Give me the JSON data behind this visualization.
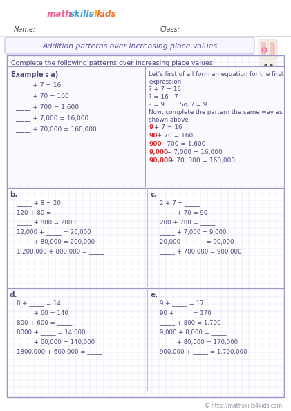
{
  "bg_color": "#ffffff",
  "grid_color": "#d8d0f0",
  "border_color": "#9898c8",
  "title_text": "Addition patterns over increasing place values",
  "title_color": "#5a5a9a",
  "logo_math": "math",
  "logo_skills": "skills",
  "logo_4": "4",
  "logo_kids": "kids",
  "logo_math_color": "#f06090",
  "logo_skills_color": "#40a0e0",
  "logo_4_color": "#f0b830",
  "logo_kids_color": "#f07030",
  "example_label": "Example : a)",
  "example_left": [
    "_____ + 7 = 16",
    "_____ + 70 = 160",
    "_____ + 700 = 1,600",
    "_____ + 7,000 = 16,000",
    "_____ + 70,000 = 160,000"
  ],
  "example_right_black": [
    "Let’s first of all form an equation for the first",
    "expression",
    "? + 7 = 16",
    "? = 16 - 7",
    "? = 9        So, ? = 9",
    "Now, complete the partern the same way as",
    "shown above"
  ],
  "example_right_red_lines": [
    [
      "9",
      " + 7 = 16"
    ],
    [
      "90",
      " + 70 = 160"
    ],
    [
      "900",
      " + 700 = 1,600"
    ],
    [
      "9,000",
      " + 7,000 = 16,000"
    ],
    [
      "90,000",
      " + 70, 000 = 160,000"
    ]
  ],
  "instruction": "Complete the following patterns over increasing place values.",
  "section_b_label": "b.",
  "section_b_lines": [
    "_____ + 8 = 20",
    "120 + 80 = _____",
    "_____ + 800 = 2000",
    "12,000 + _____ = 20,000",
    "_____ + 80,000 = 200,000",
    "1,200,000 + 800,000 = _____"
  ],
  "section_c_label": "c.",
  "section_c_lines": [
    "2 + 7 = _____",
    "_____ + 70 = 90",
    "200 + 700 = _____",
    "_____ + 7,000 = 9,000",
    "20,000 + _____ = 90,000",
    "_____ + 700,000 = 900,000"
  ],
  "section_d_label": "d.",
  "section_d_lines": [
    "8 + _____ = 14",
    "_____ + 60 = 140",
    "800 + 600 = _____",
    "8000 + _____ = 14,000",
    "_____ + 60,000 = 140,000",
    "1800,000 + 600,000 = _____"
  ],
  "section_e_label": "e.",
  "section_e_lines": [
    "9 + _____ = 17",
    "90 + _____ = 170",
    "_____ + 800 = 1,700",
    "9,000 + 8,000 = _____",
    "_____ + 80,000 = 170,000",
    "900,000 + _____ = 1,700,000"
  ],
  "footer": "© http://mathskills4kids.com",
  "footer_color": "#9090a0",
  "text_color": "#5050a0",
  "dark_text": "#4a4a7a"
}
